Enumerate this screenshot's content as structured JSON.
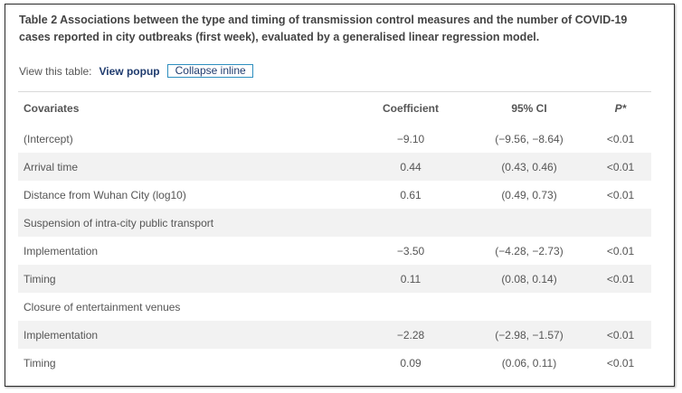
{
  "caption": {
    "text": "Table 2 Associations between the type and timing of transmission control measures and the number of COVID-19 cases reported in city outbreaks (first week), evaluated by a generalised linear regression model."
  },
  "view_controls": {
    "label": "View this table:",
    "popup": "View popup",
    "collapse": "Collapse inline"
  },
  "table": {
    "headers": {
      "covariates": "Covariates",
      "coefficient": "Coefficient",
      "ci": "95% CI",
      "p": "P*"
    },
    "rows": [
      {
        "covariate": "(Intercept)",
        "coefficient": "−9.10",
        "ci": "(−9.56, −8.64)",
        "p": "<0.01"
      },
      {
        "covariate": "Arrival time",
        "coefficient": "0.44",
        "ci": "(0.43, 0.46)",
        "p": "<0.01"
      },
      {
        "covariate": "Distance from Wuhan City (log10)",
        "coefficient": "0.61",
        "ci": "(0.49, 0.73)",
        "p": "<0.01"
      },
      {
        "covariate": "Suspension of intra-city public transport",
        "coefficient": "",
        "ci": "",
        "p": ""
      },
      {
        "covariate": "Implementation",
        "coefficient": "−3.50",
        "ci": "(−4.28, −2.73)",
        "p": "<0.01"
      },
      {
        "covariate": "Timing",
        "coefficient": "0.11",
        "ci": "(0.08, 0.14)",
        "p": "<0.01"
      },
      {
        "covariate": "Closure of entertainment venues",
        "coefficient": "",
        "ci": "",
        "p": ""
      },
      {
        "covariate": "Implementation",
        "coefficient": "−2.28",
        "ci": "(−2.98, −1.57)",
        "p": "<0.01"
      },
      {
        "covariate": "Timing",
        "coefficient": "0.09",
        "ci": "(0.06, 0.11)",
        "p": "<0.01"
      }
    ]
  },
  "colors": {
    "link": "#1f3b6e",
    "focus_border": "#2e8fbf",
    "stripe": "#f2f2f2"
  }
}
